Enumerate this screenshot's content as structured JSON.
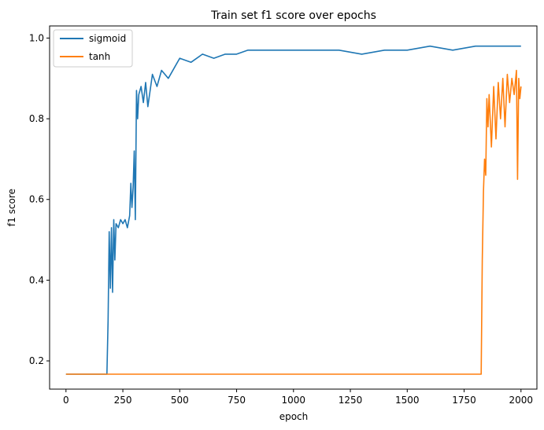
{
  "chart_data": {
    "type": "line",
    "title": "Train set f1 score over epochs",
    "xlabel": "epoch",
    "ylabel": "f1 score",
    "xlim": [
      -72,
      2070
    ],
    "ylim": [
      0.13,
      1.03
    ],
    "xticks": [
      0,
      250,
      500,
      750,
      1000,
      1250,
      1500,
      1750,
      2000
    ],
    "yticks": [
      0.2,
      0.4,
      0.6,
      0.8,
      1.0
    ],
    "xtick_labels": [
      "0",
      "250",
      "500",
      "750",
      "1000",
      "1250",
      "1500",
      "1750",
      "2000"
    ],
    "ytick_labels": [
      "0.2",
      "0.4",
      "0.6",
      "0.8",
      "1.0"
    ],
    "grid": false,
    "legend_position": "upper-left",
    "series": [
      {
        "name": "sigmoid",
        "color": "#1f77b4",
        "x": [
          0,
          100,
          180,
          185,
          190,
          195,
          200,
          205,
          210,
          215,
          220,
          230,
          240,
          250,
          260,
          270,
          280,
          285,
          290,
          295,
          300,
          305,
          310,
          315,
          320,
          330,
          340,
          350,
          360,
          380,
          400,
          420,
          450,
          480,
          500,
          550,
          600,
          650,
          700,
          750,
          800,
          900,
          1000,
          1100,
          1200,
          1300,
          1400,
          1500,
          1600,
          1700,
          1800,
          1900,
          2000
        ],
        "y": [
          0.167,
          0.167,
          0.167,
          0.3,
          0.52,
          0.38,
          0.53,
          0.37,
          0.55,
          0.45,
          0.54,
          0.53,
          0.55,
          0.54,
          0.55,
          0.53,
          0.56,
          0.64,
          0.58,
          0.63,
          0.72,
          0.55,
          0.87,
          0.8,
          0.86,
          0.88,
          0.84,
          0.89,
          0.83,
          0.91,
          0.88,
          0.92,
          0.9,
          0.93,
          0.95,
          0.94,
          0.96,
          0.95,
          0.96,
          0.96,
          0.97,
          0.97,
          0.97,
          0.97,
          0.97,
          0.96,
          0.97,
          0.97,
          0.98,
          0.97,
          0.98,
          0.98,
          0.98
        ]
      },
      {
        "name": "tanh",
        "color": "#ff7f0e",
        "x": [
          0,
          500,
          1000,
          1500,
          1825,
          1830,
          1835,
          1840,
          1845,
          1850,
          1855,
          1860,
          1870,
          1880,
          1890,
          1900,
          1910,
          1920,
          1930,
          1940,
          1950,
          1960,
          1970,
          1980,
          1985,
          1990,
          1995,
          2000
        ],
        "y": [
          0.167,
          0.167,
          0.167,
          0.167,
          0.167,
          0.45,
          0.62,
          0.7,
          0.66,
          0.85,
          0.78,
          0.86,
          0.73,
          0.88,
          0.75,
          0.89,
          0.8,
          0.9,
          0.78,
          0.91,
          0.84,
          0.9,
          0.86,
          0.92,
          0.65,
          0.9,
          0.85,
          0.88
        ]
      }
    ]
  }
}
